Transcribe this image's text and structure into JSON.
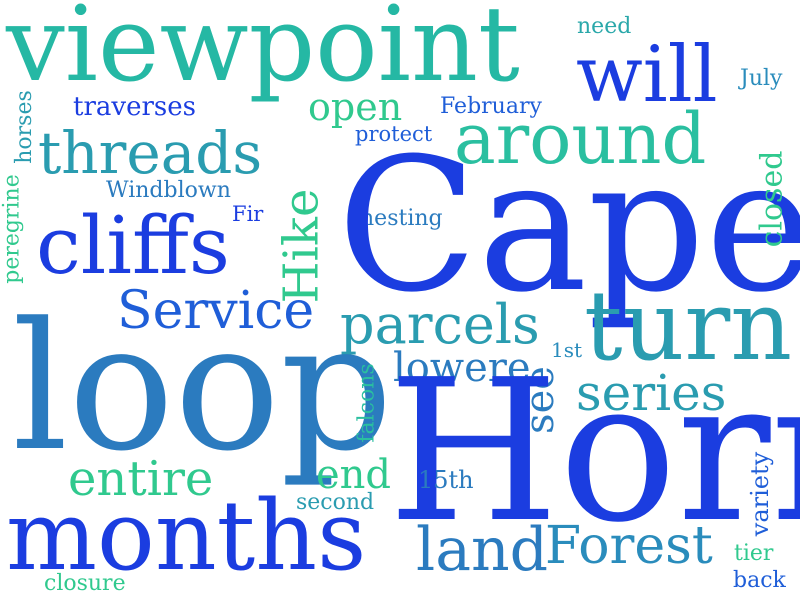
{
  "palette": {
    "deep_blue": "#1b3de0",
    "blue": "#1f5ed8",
    "steel": "#2b7bbf",
    "teal": "#2a9cb0",
    "aqua": "#28bfa0",
    "green": "#35d08a"
  },
  "words": [
    {
      "text": "viewpoint",
      "color": "#25b8a4"
    },
    {
      "text": "will",
      "color": "#1b3de0"
    },
    {
      "text": "need",
      "color": "#2aa8aa"
    },
    {
      "text": "July",
      "color": "#2a8cbc"
    },
    {
      "text": "traverses",
      "color": "#1b3de0"
    },
    {
      "text": "open",
      "color": "#30c98e"
    },
    {
      "text": "February",
      "color": "#1f5ed8"
    },
    {
      "text": "threads",
      "color": "#2a9cb0"
    },
    {
      "text": "around",
      "color": "#2abfa0"
    },
    {
      "text": "protect",
      "color": "#1f5ed8"
    },
    {
      "text": "Windblown",
      "color": "#2b7bbf"
    },
    {
      "text": "Fir",
      "color": "#1b3de0"
    },
    {
      "text": "nesting",
      "color": "#2b7bbf"
    },
    {
      "text": "Cape",
      "color": "#1b3de0"
    },
    {
      "text": "cliffs",
      "color": "#1b3de0"
    },
    {
      "text": "Hike",
      "color": "#30c98e"
    },
    {
      "text": "closed",
      "color": "#30c98e"
    },
    {
      "text": "horses",
      "color": "#2a9cb0"
    },
    {
      "text": "peregrine",
      "color": "#30c98e"
    },
    {
      "text": "Service",
      "color": "#1f5ed8"
    },
    {
      "text": "parcels",
      "color": "#2a9cb0"
    },
    {
      "text": "turn",
      "color": "#2a9cb0"
    },
    {
      "text": "1st",
      "color": "#2a8cbc"
    },
    {
      "text": "lowere",
      "color": "#2b7bbf"
    },
    {
      "text": "loop",
      "color": "#2b7bbf"
    },
    {
      "text": "series",
      "color": "#2a9cb0"
    },
    {
      "text": "see",
      "color": "#2b7bbf"
    },
    {
      "text": "falcons",
      "color": "#2abfa0"
    },
    {
      "text": "Horn",
      "color": "#1b3de0"
    },
    {
      "text": "entire",
      "color": "#30c98e"
    },
    {
      "text": "end",
      "color": "#30c98e"
    },
    {
      "text": "15th",
      "color": "#2b7bbf"
    },
    {
      "text": "second",
      "color": "#2a9cb0"
    },
    {
      "text": "variety",
      "color": "#1f5ed8"
    },
    {
      "text": "months",
      "color": "#1b3de0"
    },
    {
      "text": "land",
      "color": "#2b7bbf"
    },
    {
      "text": "Forest",
      "color": "#2a8cbc"
    },
    {
      "text": "tier",
      "color": "#30c98e"
    },
    {
      "text": "closure",
      "color": "#30c98e"
    },
    {
      "text": "back",
      "color": "#1f5ed8"
    }
  ]
}
